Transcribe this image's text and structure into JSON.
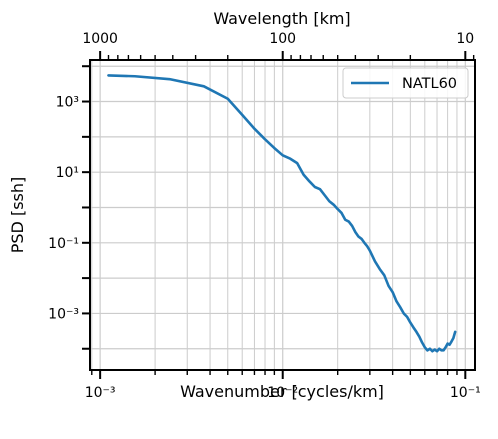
{
  "chart_data": {
    "type": "line",
    "title": "",
    "xlabel": "Wavenumber [cycles/km]",
    "ylabel": "PSD [ssh]",
    "x2label": "Wavelength [km]",
    "xscale": "log",
    "yscale": "log",
    "xlim": [
      0.00088,
      0.113
    ],
    "ylim": [
      2.5e-05,
      15000
    ],
    "grid": true,
    "legend_position": "upper right",
    "x_ticks": [
      {
        "value": 0.001,
        "label": "10⁻³"
      },
      {
        "value": 0.01,
        "label": "10⁻²"
      },
      {
        "value": 0.1,
        "label": "10⁻¹"
      }
    ],
    "y_ticks": [
      {
        "value": 1000,
        "label": "10³"
      },
      {
        "value": 10,
        "label": "10¹"
      },
      {
        "value": 0.1,
        "label": "10⁻¹"
      },
      {
        "value": 0.001,
        "label": "10⁻³"
      }
    ],
    "x2_ticks": [
      {
        "value": 1000,
        "label": "1000"
      },
      {
        "value": 100,
        "label": "100"
      },
      {
        "value": 10,
        "label": "10"
      }
    ],
    "series": [
      {
        "name": "NATL60",
        "color": "#1f77b4",
        "x": [
          0.00111,
          0.00155,
          0.0024,
          0.0037,
          0.005,
          0.006,
          0.007,
          0.008,
          0.009,
          0.01,
          0.011,
          0.012,
          0.013,
          0.014,
          0.015,
          0.016,
          0.017,
          0.018,
          0.019,
          0.02,
          0.021,
          0.022,
          0.023,
          0.024,
          0.025,
          0.026,
          0.027,
          0.028,
          0.029,
          0.03,
          0.032,
          0.034,
          0.036,
          0.038,
          0.04,
          0.042,
          0.044,
          0.046,
          0.048,
          0.05,
          0.052,
          0.054,
          0.056,
          0.058,
          0.06,
          0.062,
          0.064,
          0.066,
          0.068,
          0.07,
          0.072,
          0.074,
          0.076,
          0.078,
          0.08,
          0.082,
          0.084,
          0.086,
          0.088
        ],
        "y": [
          5500,
          5200,
          4300,
          2700,
          1200,
          420,
          170,
          85,
          48,
          30,
          24,
          18,
          8.5,
          5.5,
          3.8,
          3.3,
          2.2,
          1.5,
          1.2,
          0.9,
          0.7,
          0.45,
          0.4,
          0.3,
          0.2,
          0.15,
          0.13,
          0.1,
          0.08,
          0.06,
          0.03,
          0.018,
          0.012,
          0.006,
          0.004,
          0.0022,
          0.0015,
          0.001,
          0.0008,
          0.00055,
          0.0004,
          0.0003,
          0.00022,
          0.00015,
          0.00011,
          9e-05,
          0.0001,
          8.5e-05,
          9.5e-05,
          8.5e-05,
          0.0001,
          9e-05,
          9e-05,
          0.00011,
          0.00014,
          0.00013,
          0.00016,
          0.0002,
          0.0003
        ]
      }
    ]
  }
}
